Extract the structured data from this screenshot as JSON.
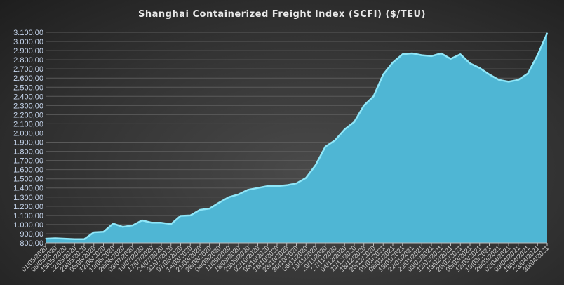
{
  "chart_data": {
    "type": "area",
    "title": "Shanghai Containerized Freight Index  (SCFI)  ($/TEU)",
    "xlabel": "",
    "ylabel": "",
    "ylim": [
      800,
      3100
    ],
    "y_ticks": [
      "800,00",
      "900,00",
      "1.000,00",
      "1.100,00",
      "1.200,00",
      "1.300,00",
      "1.400,00",
      "1.500,00",
      "1.600,00",
      "1.700,00",
      "1.800,00",
      "1.900,00",
      "2.000,00",
      "2.100,00",
      "2.200,00",
      "2.300,00",
      "2.400,00",
      "2.500,00",
      "2.600,00",
      "2.700,00",
      "2.800,00",
      "2.900,00",
      "3.000,00",
      "3.100,00"
    ],
    "grid": true,
    "legend": "none",
    "colors": {
      "fill": "#4fb6d4",
      "line": "#8fe6f8",
      "grid": "#5a5a5a"
    },
    "categories": [
      "01/05/2020",
      "08/05/2020",
      "15/05/2020",
      "22/05/2020",
      "29/05/2020",
      "05/06/2020",
      "12/06/2020",
      "19/06/2020",
      "26/06/2020",
      "03/07/2020",
      "10/07/2020",
      "17/07/2020",
      "24/07/2020",
      "31/07/2020",
      "07/08/2020",
      "14/08/2020",
      "21/08/2020",
      "28/08/2020",
      "04/09/2020",
      "11/09/2020",
      "18/09/2020",
      "25/09/2020",
      "02/10/2020",
      "09/10/2020",
      "16/10/2020",
      "23/10/2020",
      "30/10/2020",
      "06/11/2020",
      "13/11/2020",
      "20/11/2020",
      "27/11/2020",
      "04/12/2020",
      "11/12/2020",
      "18/12/2020",
      "25/12/2020",
      "01/01/2021",
      "08/01/2021",
      "15/01/2021",
      "22/01/2021",
      "29/01/2021",
      "05/02/2021",
      "12/02/2021",
      "19/02/2021",
      "26/02/2021",
      "05/03/2021",
      "12/03/2021",
      "19/03/2021",
      "26/03/2021",
      "02/04/2021",
      "09/04/2021",
      "16/04/2021",
      "23/04/2021",
      "30/04/2021"
    ],
    "values": [
      845,
      850,
      845,
      840,
      840,
      915,
      920,
      1010,
      975,
      990,
      1045,
      1020,
      1020,
      1005,
      1095,
      1100,
      1160,
      1175,
      1240,
      1300,
      1330,
      1380,
      1400,
      1420,
      1420,
      1430,
      1450,
      1510,
      1650,
      1850,
      1920,
      2040,
      2120,
      2300,
      2400,
      2640,
      2770,
      2860,
      2870,
      2850,
      2840,
      2870,
      2810,
      2860,
      2760,
      2710,
      2640,
      2580,
      2560,
      2580,
      2650,
      2850,
      3090
    ]
  }
}
